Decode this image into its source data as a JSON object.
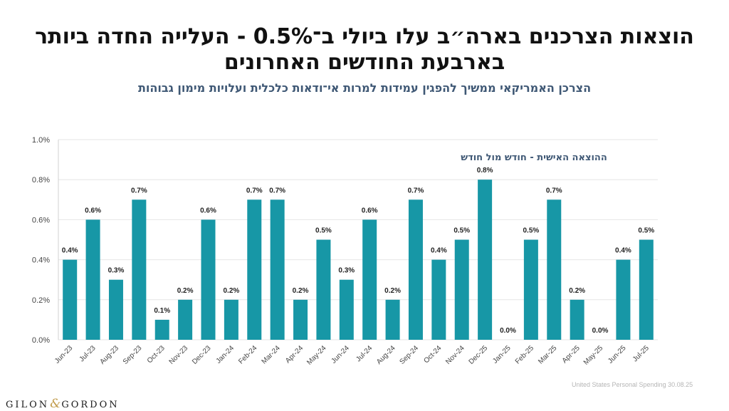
{
  "header": {
    "title_line1": "הוצאות הצרכנים בארה״ב עלו ביולי ב־0.5% - העלייה החדה ביותר",
    "title_line2": "בארבעת החודשים האחרונים",
    "subtitle": "הצרכן האמריקאי ממשיך להפגין עמידות למרות אי־ודאות כלכלית ועלויות מימון גבוהות"
  },
  "footer": {
    "source": "United States Personal Spending  30.08.25",
    "logo_left": "GILON",
    "logo_amp": "&",
    "logo_right": "GORDON"
  },
  "colors": {
    "bar": "#1797a6",
    "chart_title": "#3f5875",
    "grid": "#e6e6e6",
    "axis_text": "#444444"
  },
  "chart_data": {
    "type": "bar",
    "title": "ההוצאה האישית - חודש מול חודש",
    "xlabel": "",
    "ylabel": "",
    "ylim": [
      0,
      1.0
    ],
    "yticks": [
      "0.0%",
      "0.2%",
      "0.4%",
      "0.6%",
      "0.8%",
      "1.0%"
    ],
    "ytick_values": [
      0,
      0.2,
      0.4,
      0.6,
      0.8,
      1.0
    ],
    "grid": true,
    "categories": [
      "Jun-23",
      "Jul-23",
      "Aug-23",
      "Sep-23",
      "Oct-23",
      "Nov-23",
      "Dec-23",
      "Jan-24",
      "Feb-24",
      "Mar-24",
      "Apr-24",
      "May-24",
      "Jun-24",
      "Jul-24",
      "Aug-24",
      "Sep-24",
      "Oct-24",
      "Nov-24",
      "Dec-25",
      "Jan-25",
      "Feb-25",
      "Mar-25",
      "Apr-25",
      "May-25",
      "Jun-25",
      "Jul-25"
    ],
    "values": [
      0.4,
      0.6,
      0.3,
      0.7,
      0.1,
      0.2,
      0.6,
      0.2,
      0.7,
      0.7,
      0.2,
      0.5,
      0.3,
      0.6,
      0.2,
      0.7,
      0.4,
      0.5,
      0.8,
      0.0,
      0.5,
      0.7,
      0.2,
      0.0,
      0.4,
      0.5
    ],
    "labels": [
      "0.4%",
      "0.6%",
      "0.3%",
      "0.7%",
      "0.1%",
      "0.2%",
      "0.6%",
      "0.2%",
      "0.7%",
      "0.7%",
      "0.2%",
      "0.5%",
      "0.3%",
      "0.6%",
      "0.2%",
      "0.7%",
      "0.4%",
      "0.5%",
      "0.8%",
      "0.0%",
      "0.5%",
      "0.7%",
      "0.2%",
      "0.0%",
      "0.4%",
      "0.5%"
    ]
  }
}
